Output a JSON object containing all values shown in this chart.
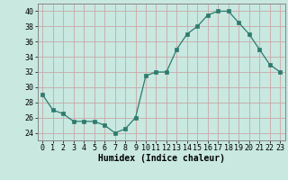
{
  "x": [
    0,
    1,
    2,
    3,
    4,
    5,
    6,
    7,
    8,
    9,
    10,
    11,
    12,
    13,
    14,
    15,
    16,
    17,
    18,
    19,
    20,
    21,
    22,
    23
  ],
  "y": [
    29,
    27,
    26.5,
    25.5,
    25.5,
    25.5,
    25,
    24,
    24.5,
    26,
    31.5,
    32,
    32,
    35,
    37,
    38,
    39.5,
    40,
    40,
    38.5,
    37,
    35,
    33,
    32
  ],
  "line_color": "#2d7b6e",
  "marker_color": "#2d7b6e",
  "bg_color": "#c8e8e0",
  "grid_color": "#c8a8a8",
  "xlabel": "Humidex (Indice chaleur)",
  "ylim": [
    23,
    41
  ],
  "xlim": [
    -0.5,
    23.5
  ],
  "yticks": [
    24,
    26,
    28,
    30,
    32,
    34,
    36,
    38,
    40
  ],
  "xticks": [
    0,
    1,
    2,
    3,
    4,
    5,
    6,
    7,
    8,
    9,
    10,
    11,
    12,
    13,
    14,
    15,
    16,
    17,
    18,
    19,
    20,
    21,
    22,
    23
  ],
  "xlabel_fontsize": 7,
  "tick_fontsize": 6,
  "spine_color": "#888888"
}
